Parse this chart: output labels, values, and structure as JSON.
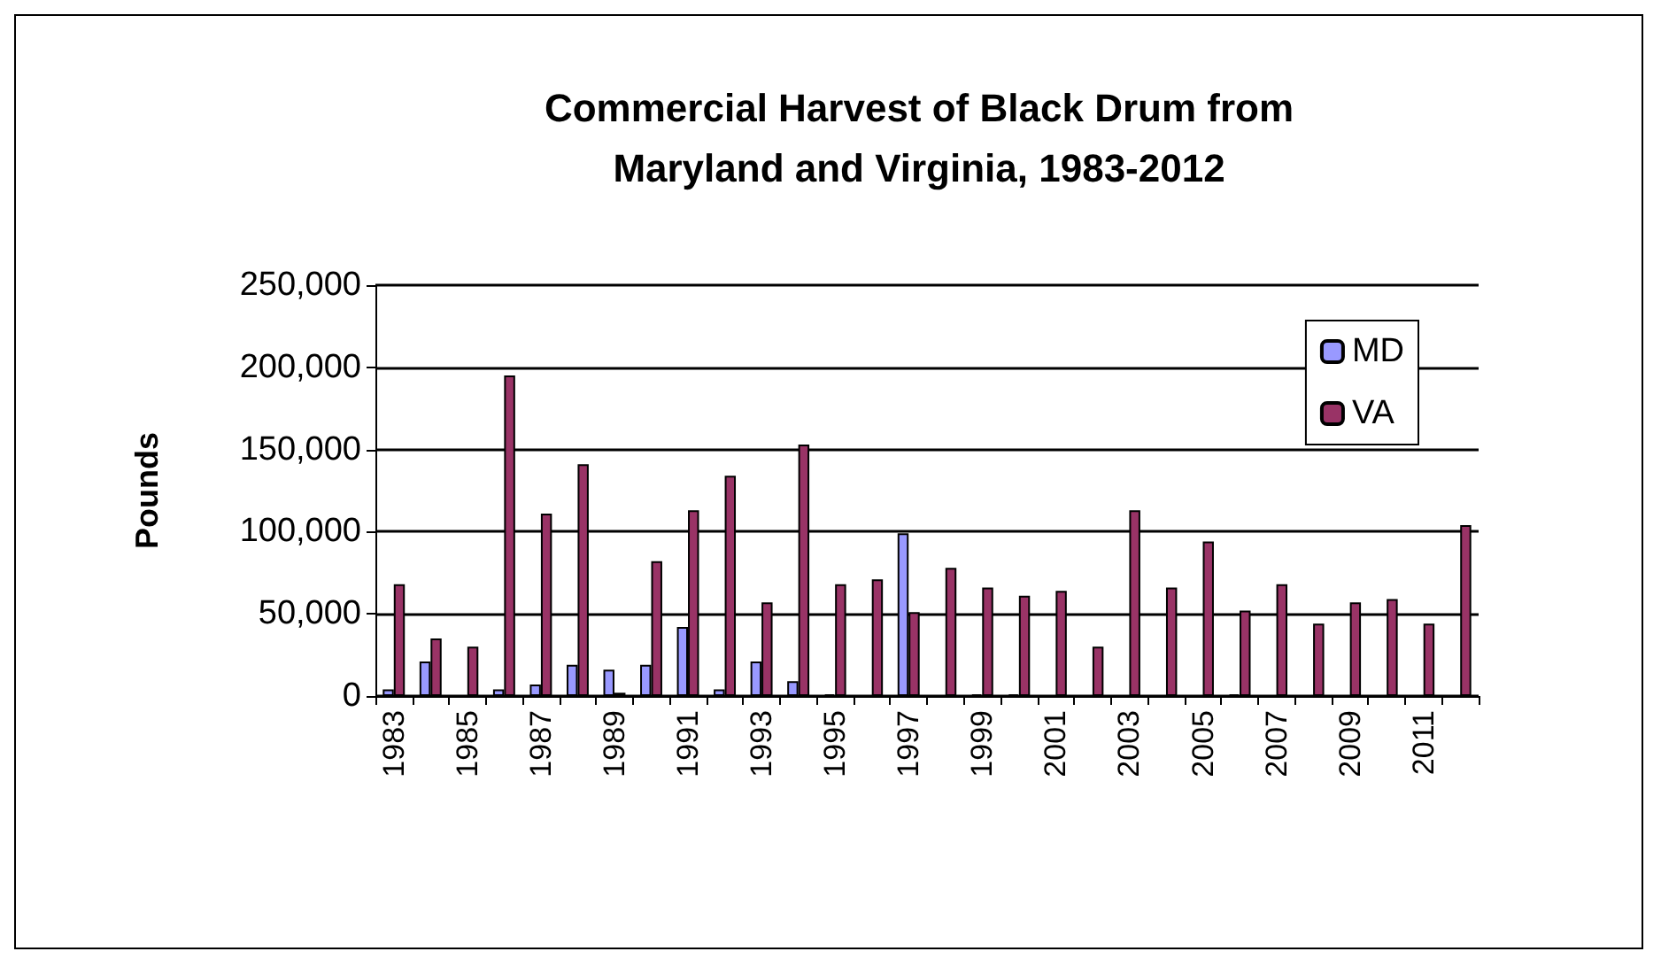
{
  "chart_data": {
    "type": "bar",
    "title": "Commercial Harvest of Black Drum from\nMaryland and Virginia, 1983-2012",
    "ylabel": "Pounds",
    "categories": [
      "1983",
      null,
      "1985",
      null,
      "1987",
      null,
      "1989",
      null,
      "1991",
      null,
      "1993",
      null,
      "1995",
      null,
      "1997",
      null,
      "1999",
      null,
      "2001",
      null,
      "2003",
      null,
      "2005",
      null,
      "2007",
      null,
      "2009",
      null,
      "2011",
      null
    ],
    "series": [
      {
        "name": "MD",
        "color": "#9999ff",
        "values": [
          4000,
          21000,
          0,
          4000,
          7000,
          19000,
          16000,
          19000,
          42000,
          4000,
          21000,
          9000,
          1000,
          0,
          99000,
          0,
          1000,
          1000,
          0,
          0,
          0,
          0,
          0,
          1000,
          0,
          0,
          0,
          0,
          0,
          0
        ]
      },
      {
        "name": "VA",
        "color": "#993366",
        "values": [
          68000,
          35000,
          30000,
          195000,
          111000,
          141000,
          2000,
          82000,
          113000,
          134000,
          57000,
          153000,
          68000,
          71000,
          51000,
          78000,
          66000,
          61000,
          64000,
          30000,
          113000,
          66000,
          94000,
          52000,
          68000,
          44000,
          57000,
          59000,
          44000,
          104000
        ]
      }
    ],
    "ylim": [
      0,
      250000
    ],
    "yticks": [
      {
        "value": 0,
        "label": "0"
      },
      {
        "value": 50000,
        "label": "50,000"
      },
      {
        "value": 100000,
        "label": "100,000"
      },
      {
        "value": 150000,
        "label": "150,000"
      },
      {
        "value": 200000,
        "label": "200,000"
      },
      {
        "value": 250000,
        "label": "250,000"
      }
    ],
    "grid": "y",
    "legend": "top right"
  }
}
